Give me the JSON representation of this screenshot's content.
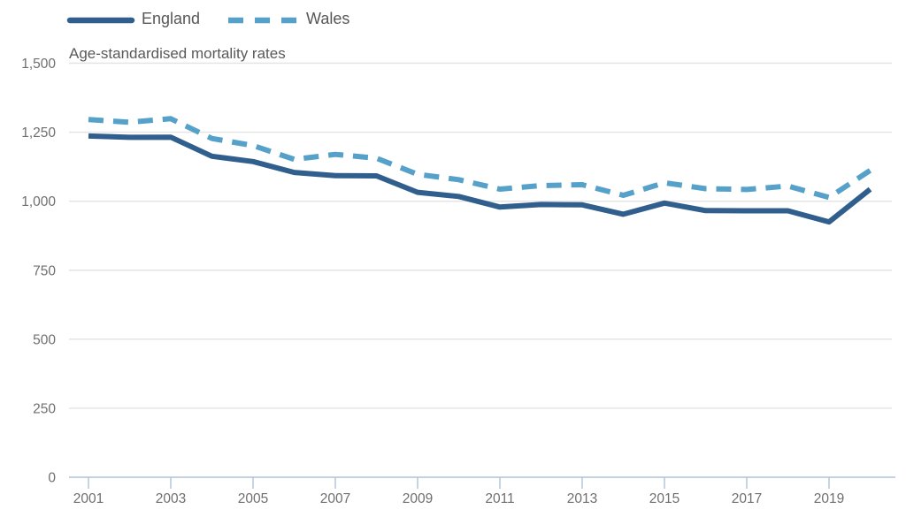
{
  "subtitle": "Age-standardised mortality rates",
  "legend": {
    "england_label": "England",
    "wales_label": "Wales"
  },
  "colors": {
    "england": "#305f8e",
    "wales": "#55a1c9",
    "grid": "#e3e3e3",
    "axis": "#aec3d7",
    "axis_text": "#6f6f6f",
    "label_text": "#575959"
  },
  "chart_data": {
    "type": "line",
    "title": "",
    "subtitle": "Age-standardised mortality rates",
    "xlabel": "",
    "ylabel": "",
    "ylim": [
      0,
      1500
    ],
    "grid": "horizontal",
    "legend_position": "top-left",
    "x": [
      2001,
      2002,
      2003,
      2004,
      2005,
      2006,
      2007,
      2008,
      2009,
      2010,
      2011,
      2012,
      2013,
      2014,
      2015,
      2016,
      2017,
      2018,
      2019,
      2020
    ],
    "yticks": [
      0,
      250,
      500,
      750,
      1000,
      1250,
      1500
    ],
    "ytick_labels": [
      "0",
      "250",
      "500",
      "750",
      "1,000",
      "1,250",
      "1,500"
    ],
    "xtick_labels": [
      "2001",
      "2003",
      "2005",
      "2007",
      "2009",
      "2011",
      "2013",
      "2015",
      "2017",
      "2019"
    ],
    "series": [
      {
        "name": "England",
        "style": "solid",
        "color": "#305f8e",
        "values": [
          1236.2,
          1231.3,
          1232.1,
          1163.0,
          1143.7,
          1104.3,
          1092.9,
          1091.8,
          1032.1,
          1017.3,
          978.7,
          988.0,
          986.7,
          952.9,
          993.2,
          966.0,
          965.3,
          965.4,
          925.0,
          1043.5
        ]
      },
      {
        "name": "Wales",
        "style": "dashed",
        "color": "#55a1c9",
        "values": [
          1295.6,
          1286.0,
          1298.9,
          1227.3,
          1201.7,
          1151.8,
          1169.6,
          1155.8,
          1097.7,
          1077.9,
          1043.7,
          1056.7,
          1059.9,
          1021.5,
          1066.7,
          1045.5,
          1042.6,
          1055.0,
          1013.6,
          1111.6
        ]
      }
    ]
  }
}
